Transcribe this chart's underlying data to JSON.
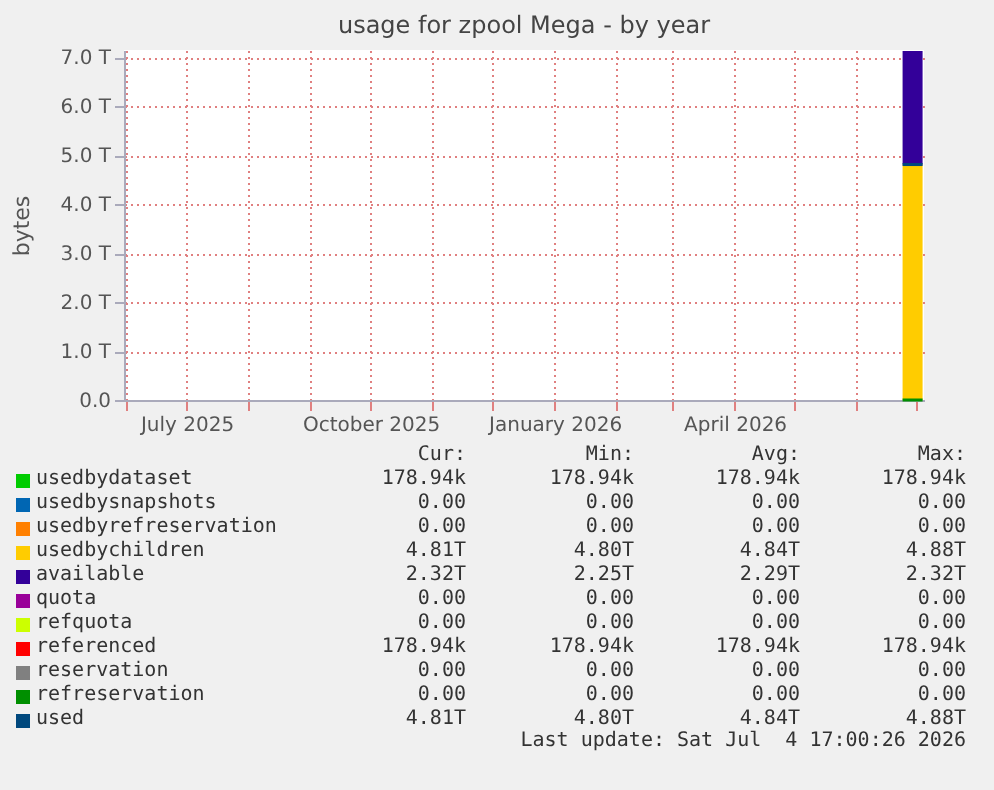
{
  "chart_data": {
    "type": "area",
    "title": "usage for zpool Mega - by year",
    "ylabel": "bytes",
    "stacked": true,
    "grid": true,
    "legend": "bottom",
    "xlim": [
      "2025-05-30T17:00",
      "2026-07-04T17:00"
    ],
    "xticks": [
      {
        "value": "2025-06-01",
        "label": null
      },
      {
        "value": "2025-07-01",
        "label": "July 2025"
      },
      {
        "value": "2025-08-01",
        "label": null
      },
      {
        "value": "2025-09-01",
        "label": null
      },
      {
        "value": "2025-10-01",
        "label": "October 2025"
      },
      {
        "value": "2025-11-01",
        "label": null
      },
      {
        "value": "2025-12-01",
        "label": null
      },
      {
        "value": "2026-01-01",
        "label": "January 2026"
      },
      {
        "value": "2026-02-01",
        "label": null
      },
      {
        "value": "2026-03-01",
        "label": null
      },
      {
        "value": "2026-04-01",
        "label": "April 2026"
      },
      {
        "value": "2026-05-01",
        "label": null
      },
      {
        "value": "2026-06-01",
        "label": null
      },
      {
        "value": "2026-07-01",
        "label": null
      }
    ],
    "ylim": [
      0,
      7.15
    ],
    "yticks": [
      {
        "value": 0,
        "label": "0.0"
      },
      {
        "value": 1,
        "label": "1.0 T"
      },
      {
        "value": 2,
        "label": "2.0 T"
      },
      {
        "value": 3,
        "label": "3.0 T"
      },
      {
        "value": 4,
        "label": "4.0 T"
      },
      {
        "value": 5,
        "label": "5.0 T"
      },
      {
        "value": 6,
        "label": "6.0 T"
      },
      {
        "value": 7,
        "label": "7.0 T"
      }
    ],
    "x": [
      "2026-06-24",
      "2026-07-04"
    ],
    "series": [
      {
        "name": "usedbydataset",
        "color": "#00cc00",
        "values": [
          null,
          null
        ]
      },
      {
        "name": "usedbysnapshots",
        "color": "#0066b3",
        "values": [
          null,
          null
        ]
      },
      {
        "name": "usedbyrefreservation",
        "color": "#ff8000",
        "values": [
          null,
          null
        ]
      },
      {
        "name": "usedbychildren",
        "color": "#ffcc00",
        "values": [
          4.81,
          4.81
        ]
      },
      {
        "name": "available",
        "color": "#330099",
        "values": [
          2.32,
          2.32
        ]
      },
      {
        "name": "quota",
        "color": "#990099",
        "type": "line",
        "values": [
          null,
          null
        ]
      },
      {
        "name": "refquota",
        "color": "#ccff00",
        "type": "line",
        "values": [
          null,
          null
        ]
      },
      {
        "name": "referenced",
        "color": "#ff0000",
        "type": "line",
        "values": [
          null,
          null
        ]
      },
      {
        "name": "reservation",
        "color": "#808080",
        "type": "line",
        "values": [
          null,
          null
        ]
      },
      {
        "name": "refreservation",
        "color": "#008f00",
        "type": "line",
        "values": [
          0,
          0
        ]
      },
      {
        "name": "used",
        "color": "#00487d",
        "type": "line",
        "values": [
          4.81,
          4.81
        ]
      }
    ],
    "annotations": [
      "Cur:",
      "Min:",
      "Avg:",
      "Max:",
      "178.94k",
      "178.94k",
      "178.94k",
      "178.94k",
      "0.00",
      "0.00",
      "0.00",
      "0.00",
      "0.00",
      "0.00",
      "0.00",
      "0.00",
      "4.81T",
      "4.80T",
      "4.84T",
      "4.88T",
      "2.32T",
      "2.25T",
      "2.29T",
      "2.32T",
      "0.00",
      "0.00",
      "0.00",
      "0.00",
      "0.00",
      "0.00",
      "0.00",
      "0.00",
      "178.94k",
      "178.94k",
      "178.94k",
      "178.94k",
      "0.00",
      "0.00",
      "0.00",
      "0.00",
      "0.00",
      "0.00",
      "0.00",
      "0.00",
      "4.81T",
      "4.80T",
      "4.84T",
      "4.88T",
      "Last update: Sat Jul  4 17:00:26 2026"
    ]
  }
}
